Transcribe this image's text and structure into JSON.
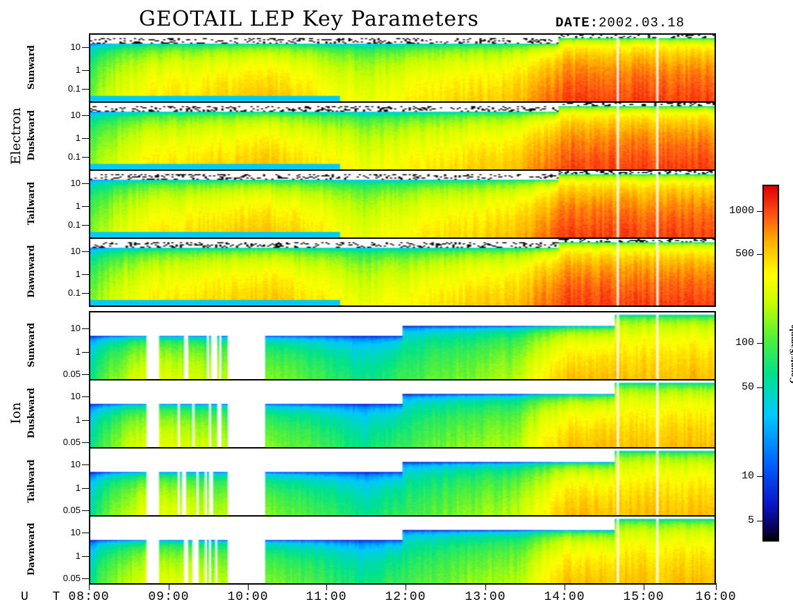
{
  "title": "GEOTAIL LEP Key Parameters",
  "date_label": "DATE:",
  "date_value": "2002.03.18",
  "groups": {
    "electron": "Electron",
    "ion": "Ion"
  },
  "panels": [
    {
      "species": "electron",
      "label": "Sunward",
      "yticks": [
        "10",
        "1",
        "0.1"
      ]
    },
    {
      "species": "electron",
      "label": "Duskward",
      "yticks": [
        "10",
        "1",
        "0.1"
      ]
    },
    {
      "species": "electron",
      "label": "Tailward",
      "yticks": [
        "10",
        "1",
        "0.1"
      ]
    },
    {
      "species": "electron",
      "label": "Dawnward",
      "yticks": [
        "10",
        "1",
        "0.1"
      ]
    },
    {
      "species": "ion",
      "label": "Sunward",
      "yticks": [
        "10",
        "1",
        "0.05"
      ]
    },
    {
      "species": "ion",
      "label": "Duskward",
      "yticks": [
        "10",
        "1",
        "0.05"
      ]
    },
    {
      "species": "ion",
      "label": "Tailward",
      "yticks": [
        "10",
        "1",
        "0.05"
      ]
    },
    {
      "species": "ion",
      "label": "Dawnward",
      "yticks": [
        "10",
        "1",
        "0.05"
      ]
    }
  ],
  "xaxis": {
    "label": "U T",
    "ticks": [
      "08:00",
      "09:00",
      "10:00",
      "11:00",
      "12:00",
      "13:00",
      "14:00",
      "15:00",
      "16:00"
    ]
  },
  "colorbar": {
    "title": "Counts/Sample",
    "ticks": [
      "1000",
      "500",
      "100",
      "50",
      "10",
      "5"
    ]
  },
  "chart_data": {
    "type": "heatmap",
    "title": "GEOTAIL LEP Key Parameters",
    "date": "2002.03.18",
    "x_range": [
      "08:00",
      "16:00"
    ],
    "electron_y_range": [
      0.05,
      20
    ],
    "ion_y_range": [
      0.05,
      20
    ],
    "y_scale": "log",
    "colorbar_range": [
      3,
      1800
    ],
    "colorbar_scale": "log",
    "colorbar_label": "Counts/Sample",
    "data_gaps_ut": [
      "14:46",
      "15:17"
    ],
    "electron_profile": [
      {
        "t": "08:00",
        "peak_counts": 150
      },
      {
        "t": "08:40",
        "peak_counts": 400
      },
      {
        "t": "10:15",
        "peak_counts": 600
      },
      {
        "t": "11:30",
        "peak_counts": 300
      },
      {
        "t": "13:30",
        "peak_counts": 600
      },
      {
        "t": "14:10",
        "peak_counts": 1200
      },
      {
        "t": "16:00",
        "peak_counts": 1200
      }
    ],
    "ion_profile": [
      {
        "t": "08:00",
        "peak_counts": 60
      },
      {
        "t": "08:45",
        "peak_counts": 300
      },
      {
        "t": "10:15",
        "peak_counts": 150
      },
      {
        "t": "11:30",
        "peak_counts": 60
      },
      {
        "t": "13:30",
        "peak_counts": 200
      },
      {
        "t": "14:10",
        "peak_counts": 600
      },
      {
        "t": "16:00",
        "peak_counts": 600
      }
    ]
  }
}
